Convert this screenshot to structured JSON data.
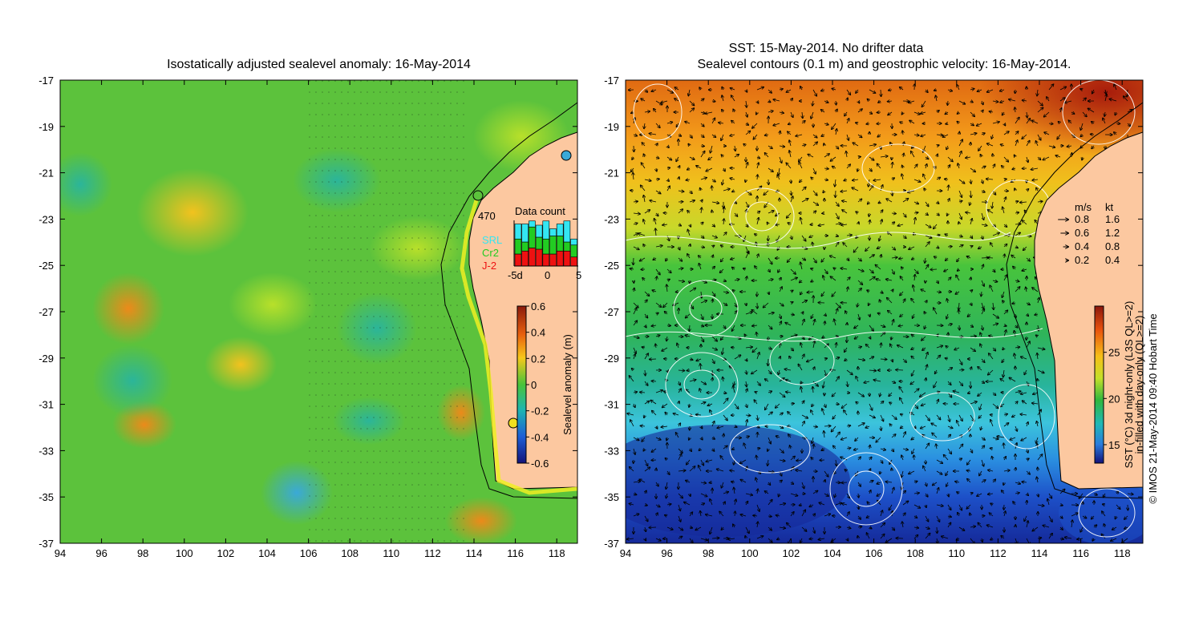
{
  "left_map": {
    "title": "Isostatically adjusted sealevel anomaly: 16-May-2014",
    "x_ticks": [
      "94",
      "96",
      "98",
      "100",
      "102",
      "104",
      "106",
      "108",
      "110",
      "112",
      "114",
      "116",
      "118"
    ],
    "y_ticks": [
      "-17",
      "-19",
      "-21",
      "-23",
      "-25",
      "-27",
      "-29",
      "-31",
      "-33",
      "-35",
      "-37"
    ],
    "colorbar": {
      "label": "Sealevel anomaly (m)",
      "ticks": [
        "0.6",
        "0.4",
        "0.2",
        "0",
        "-0.2",
        "-0.4",
        "-0.6"
      ],
      "range": [
        -0.6,
        0.6
      ]
    },
    "data_count": {
      "title": "Data count",
      "max_label": "470",
      "legend": [
        {
          "name": "SRL",
          "color": "#33e6f2"
        },
        {
          "name": "Cr2",
          "color": "#22cc22"
        },
        {
          "name": "J-2",
          "color": "#ee1111"
        }
      ],
      "x_ticks": [
        "-5d",
        "0",
        "5"
      ],
      "bars": [
        {
          "day": -5,
          "srl": 0.25,
          "cr2": 0.25,
          "j2": 0.2
        },
        {
          "day": -4,
          "srl": 0.3,
          "cr2": 0.15,
          "j2": 0.25
        },
        {
          "day": -3,
          "srl": 0.1,
          "cr2": 0.35,
          "j2": 0.3
        },
        {
          "day": -2,
          "srl": 0.2,
          "cr2": 0.2,
          "j2": 0.28
        },
        {
          "day": -1,
          "srl": 0.3,
          "cr2": 0.25,
          "j2": 0.2
        },
        {
          "day": 0,
          "srl": 0.12,
          "cr2": 0.3,
          "j2": 0.2
        },
        {
          "day": 1,
          "srl": 0.2,
          "cr2": 0.25,
          "j2": 0.25
        },
        {
          "day": 2,
          "srl": 0.35,
          "cr2": 0.15,
          "j2": 0.25
        },
        {
          "day": 3,
          "srl": 0.1,
          "cr2": 0.2,
          "j2": 0.15
        }
      ]
    }
  },
  "right_map": {
    "title_line1": "SST: 15-May-2014. No drifter data",
    "title_line2": "Sealevel contours (0.1 m) and geostrophic velocity: 16-May-2014.",
    "x_ticks": [
      "94",
      "96",
      "98",
      "100",
      "102",
      "104",
      "106",
      "108",
      "110",
      "112",
      "114",
      "116",
      "118"
    ],
    "y_ticks": [
      "-17",
      "-19",
      "-21",
      "-23",
      "-25",
      "-27",
      "-29",
      "-31",
      "-33",
      "-35",
      "-37"
    ],
    "velocity_legend": {
      "header_ms": "m/s",
      "header_kt": "kt",
      "rows": [
        {
          "ms": "0.8",
          "kt": "1.6"
        },
        {
          "ms": "0.6",
          "kt": "1.2"
        },
        {
          "ms": "0.4",
          "kt": "0.8"
        },
        {
          "ms": "0.2",
          "kt": "0.4"
        }
      ]
    },
    "colorbar": {
      "label_line1": "SST (°C) 3d night-only (L3S QL>=2)",
      "label_line2": "in-filled with day-only (QL>=2)",
      "ticks": [
        "25",
        "20",
        "15"
      ],
      "range": [
        13,
        30
      ]
    }
  },
  "credit": "© IMOS 21-May-2014 09:40 Hobart Time",
  "colors": {
    "land": "#fcc8a0",
    "coast": "#000000"
  }
}
